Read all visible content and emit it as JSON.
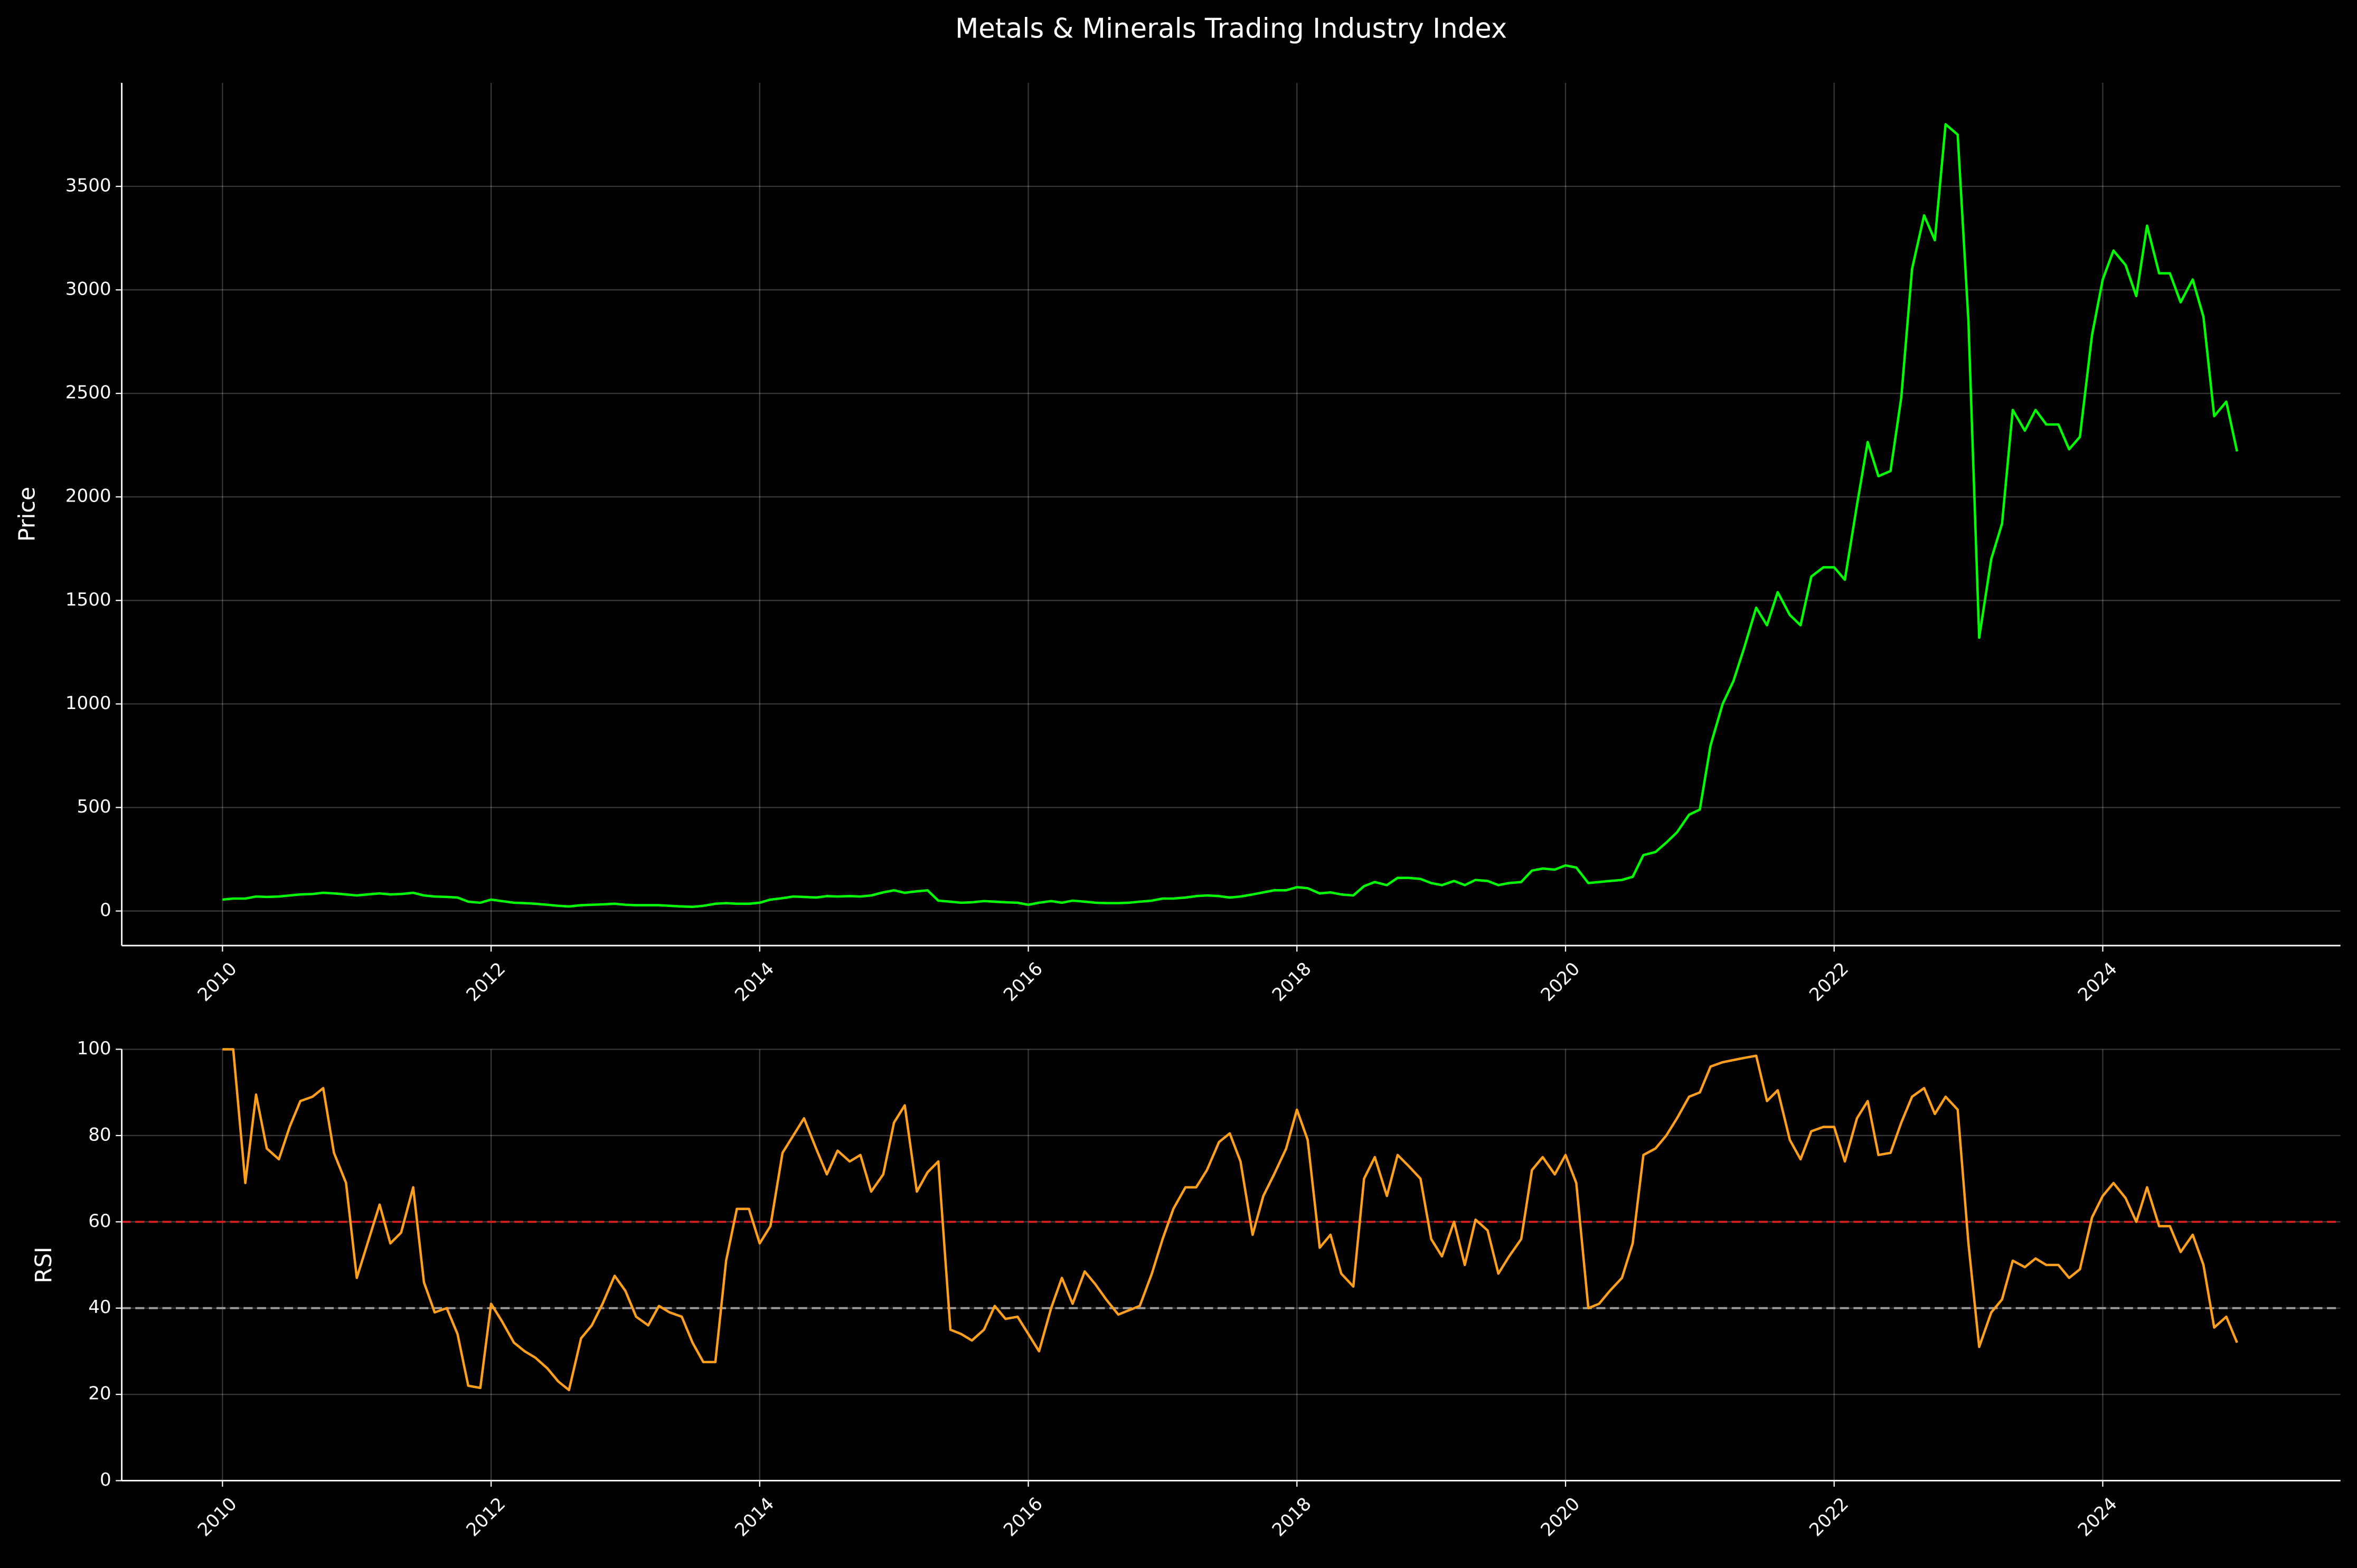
{
  "chart_data": [
    {
      "type": "line",
      "title": "Metals & Minerals Trading Industry Index",
      "ylabel": "Price",
      "x": [
        2010,
        2010.08,
        2010.17,
        2010.25,
        2010.33,
        2010.42,
        2010.5,
        2010.58,
        2010.67,
        2010.75,
        2010.83,
        2010.92,
        2011,
        2011.08,
        2011.17,
        2011.25,
        2011.33,
        2011.42,
        2011.5,
        2011.58,
        2011.67,
        2011.75,
        2011.83,
        2011.92,
        2012,
        2012.08,
        2012.17,
        2012.25,
        2012.33,
        2012.42,
        2012.5,
        2012.58,
        2012.67,
        2012.75,
        2012.83,
        2012.92,
        2013,
        2013.08,
        2013.17,
        2013.25,
        2013.33,
        2013.42,
        2013.5,
        2013.58,
        2013.67,
        2013.75,
        2013.83,
        2013.92,
        2014,
        2014.08,
        2014.17,
        2014.25,
        2014.33,
        2014.42,
        2014.5,
        2014.58,
        2014.67,
        2014.75,
        2014.83,
        2014.92,
        2015,
        2015.08,
        2015.17,
        2015.25,
        2015.33,
        2015.42,
        2015.5,
        2015.58,
        2015.67,
        2015.75,
        2015.83,
        2015.92,
        2016,
        2016.08,
        2016.17,
        2016.25,
        2016.33,
        2016.42,
        2016.5,
        2016.58,
        2016.67,
        2016.75,
        2016.83,
        2016.92,
        2017,
        2017.08,
        2017.17,
        2017.25,
        2017.33,
        2017.42,
        2017.5,
        2017.58,
        2017.67,
        2017.75,
        2017.83,
        2017.92,
        2018,
        2018.08,
        2018.17,
        2018.25,
        2018.33,
        2018.42,
        2018.5,
        2018.58,
        2018.67,
        2018.75,
        2018.83,
        2018.92,
        2019,
        2019.08,
        2019.17,
        2019.25,
        2019.33,
        2019.42,
        2019.5,
        2019.58,
        2019.67,
        2019.75,
        2019.83,
        2019.92,
        2020,
        2020.08,
        2020.17,
        2020.25,
        2020.33,
        2020.42,
        2020.5,
        2020.58,
        2020.67,
        2020.75,
        2020.83,
        2020.92,
        2021,
        2021.08,
        2021.17,
        2021.25,
        2021.33,
        2021.42,
        2021.5,
        2021.58,
        2021.67,
        2021.75,
        2021.83,
        2021.92,
        2022,
        2022.08,
        2022.17,
        2022.25,
        2022.33,
        2022.42,
        2022.5,
        2022.58,
        2022.67,
        2022.75,
        2022.83,
        2022.92,
        2023,
        2023.08,
        2023.17,
        2023.25,
        2023.33,
        2023.42,
        2023.5,
        2023.58,
        2023.67,
        2023.75,
        2023.83,
        2023.92,
        2024,
        2024.08,
        2024.17,
        2024.25,
        2024.33,
        2024.42,
        2024.5,
        2024.58,
        2024.67,
        2024.75,
        2024.83,
        2024.92,
        2025
      ],
      "series": [
        {
          "name": "Price",
          "color": "#00ff00",
          "values": [
            55,
            60,
            60,
            70,
            68,
            70,
            75,
            80,
            82,
            88,
            85,
            80,
            75,
            80,
            85,
            80,
            82,
            88,
            75,
            70,
            68,
            65,
            45,
            40,
            55,
            48,
            40,
            38,
            35,
            30,
            25,
            22,
            28,
            30,
            32,
            35,
            30,
            28,
            28,
            28,
            25,
            22,
            20,
            25,
            35,
            38,
            35,
            35,
            40,
            55,
            62,
            70,
            68,
            65,
            72,
            70,
            72,
            70,
            75,
            90,
            100,
            88,
            95,
            100,
            50,
            45,
            40,
            42,
            48,
            45,
            42,
            40,
            30,
            40,
            48,
            40,
            50,
            45,
            40,
            38,
            38,
            40,
            45,
            50,
            60,
            60,
            65,
            72,
            75,
            72,
            65,
            70,
            80,
            90,
            100,
            100,
            115,
            110,
            85,
            90,
            80,
            75,
            120,
            140,
            125,
            160,
            160,
            155,
            135,
            125,
            145,
            125,
            150,
            145,
            125,
            135,
            140,
            195,
            205,
            200,
            220,
            210,
            135,
            140,
            145,
            150,
            165,
            270,
            285,
            330,
            380,
            465,
            490,
            800,
            1000,
            1110,
            1270,
            1465,
            1380,
            1540,
            1430,
            1380,
            1615,
            1660,
            1660,
            1600,
            1960,
            2265,
            2100,
            2125,
            2480,
            3100,
            3360,
            3240,
            3800,
            3750,
            2850,
            1320,
            1700,
            1870,
            2420,
            2320,
            2420,
            2350,
            2350,
            2230,
            2290,
            2780,
            3050,
            3190,
            3120,
            2970,
            3310,
            3080,
            3080,
            2940,
            3050,
            2870,
            2390,
            2460,
            2220
          ]
        }
      ],
      "xlim": [
        2009.25,
        2025.77
      ],
      "xticks": [
        2010,
        2012,
        2014,
        2016,
        2018,
        2020,
        2022,
        2024
      ],
      "ylim": [
        -167,
        4000
      ],
      "yticks": [
        0,
        500,
        1000,
        1500,
        2000,
        2500,
        3000,
        3500
      ],
      "grid": true
    },
    {
      "type": "line",
      "ylabel": "RSI",
      "x": [
        2010,
        2010.08,
        2010.17,
        2010.25,
        2010.33,
        2010.42,
        2010.5,
        2010.58,
        2010.67,
        2010.75,
        2010.83,
        2010.92,
        2011,
        2011.08,
        2011.17,
        2011.25,
        2011.33,
        2011.42,
        2011.5,
        2011.58,
        2011.67,
        2011.75,
        2011.83,
        2011.92,
        2012,
        2012.08,
        2012.17,
        2012.25,
        2012.33,
        2012.42,
        2012.5,
        2012.58,
        2012.67,
        2012.75,
        2012.83,
        2012.92,
        2013,
        2013.08,
        2013.17,
        2013.25,
        2013.33,
        2013.42,
        2013.5,
        2013.58,
        2013.67,
        2013.75,
        2013.83,
        2013.92,
        2014,
        2014.08,
        2014.17,
        2014.25,
        2014.33,
        2014.42,
        2014.5,
        2014.58,
        2014.67,
        2014.75,
        2014.83,
        2014.92,
        2015,
        2015.08,
        2015.17,
        2015.25,
        2015.33,
        2015.42,
        2015.5,
        2015.58,
        2015.67,
        2015.75,
        2015.83,
        2015.92,
        2016,
        2016.08,
        2016.17,
        2016.25,
        2016.33,
        2016.42,
        2016.5,
        2016.58,
        2016.67,
        2016.75,
        2016.83,
        2016.92,
        2017,
        2017.08,
        2017.17,
        2017.25,
        2017.33,
        2017.42,
        2017.5,
        2017.58,
        2017.67,
        2017.75,
        2017.83,
        2017.92,
        2018,
        2018.08,
        2018.17,
        2018.25,
        2018.33,
        2018.42,
        2018.5,
        2018.58,
        2018.67,
        2018.75,
        2018.83,
        2018.92,
        2019,
        2019.08,
        2019.17,
        2019.25,
        2019.33,
        2019.42,
        2019.5,
        2019.58,
        2019.67,
        2019.75,
        2019.83,
        2019.92,
        2020,
        2020.08,
        2020.17,
        2020.25,
        2020.33,
        2020.42,
        2020.5,
        2020.58,
        2020.67,
        2020.75,
        2020.83,
        2020.92,
        2021,
        2021.08,
        2021.17,
        2021.25,
        2021.33,
        2021.42,
        2021.5,
        2021.58,
        2021.67,
        2021.75,
        2021.83,
        2021.92,
        2022,
        2022.08,
        2022.17,
        2022.25,
        2022.33,
        2022.42,
        2022.5,
        2022.58,
        2022.67,
        2022.75,
        2022.83,
        2022.92,
        2023,
        2023.08,
        2023.17,
        2023.25,
        2023.33,
        2023.42,
        2023.5,
        2023.58,
        2023.67,
        2023.75,
        2023.83,
        2023.92,
        2024,
        2024.08,
        2024.17,
        2024.25,
        2024.33,
        2024.42,
        2024.5,
        2024.58,
        2024.67,
        2024.75,
        2024.83,
        2024.92,
        2025
      ],
      "series": [
        {
          "name": "RSI",
          "color": "#ff9f1c",
          "values": [
            100,
            100,
            69,
            89.5,
            77,
            74.5,
            82,
            88,
            89,
            91,
            76,
            69,
            47,
            55,
            64,
            55,
            57.5,
            68,
            46,
            39,
            40,
            34,
            22,
            21.5,
            41,
            37,
            32,
            30,
            28.5,
            26,
            23,
            21,
            33,
            36,
            41,
            47.5,
            44,
            38,
            36,
            40.5,
            39,
            38,
            32,
            27.5,
            27.5,
            51,
            63,
            63,
            55,
            59,
            76,
            80,
            84,
            77,
            71,
            76.5,
            74,
            75.5,
            67,
            71,
            83,
            87,
            67,
            71.5,
            74,
            35,
            34,
            32.5,
            35,
            40.5,
            37.5,
            38,
            34,
            30,
            40,
            47,
            41,
            48.5,
            45.5,
            42,
            38.5,
            39.5,
            40.5,
            48,
            56,
            63,
            68,
            68,
            72,
            78.5,
            80.5,
            74,
            57,
            66,
            71,
            77,
            86,
            79,
            54,
            57,
            48,
            45,
            70,
            75,
            66,
            75.5,
            73,
            70,
            56,
            52,
            60,
            50,
            60.5,
            58,
            48,
            52,
            56,
            72,
            75,
            71,
            75.5,
            69,
            40,
            41,
            44,
            47,
            55,
            75.5,
            77,
            80,
            84,
            89,
            90,
            96,
            97,
            97.5,
            98,
            98.5,
            88,
            90.5,
            79,
            74.5,
            81,
            82,
            82,
            74,
            84,
            88,
            75.5,
            76,
            83,
            89,
            91,
            85,
            89,
            86,
            55,
            31,
            39,
            42,
            51,
            49.5,
            51.5,
            50,
            50,
            47,
            49,
            61,
            66,
            69,
            65.5,
            60,
            68,
            59,
            59,
            53,
            57,
            50,
            35.5,
            38,
            32
          ]
        }
      ],
      "reference_lines": [
        {
          "value": 60,
          "color": "#d62020"
        },
        {
          "value": 40,
          "color": "#9a9a9a"
        }
      ],
      "xlim": [
        2009.25,
        2025.77
      ],
      "xticks": [
        2010,
        2012,
        2014,
        2016,
        2018,
        2020,
        2022,
        2024
      ],
      "ylim": [
        0,
        100
      ],
      "yticks": [
        0,
        20,
        40,
        60,
        80,
        100
      ],
      "grid": true
    }
  ]
}
